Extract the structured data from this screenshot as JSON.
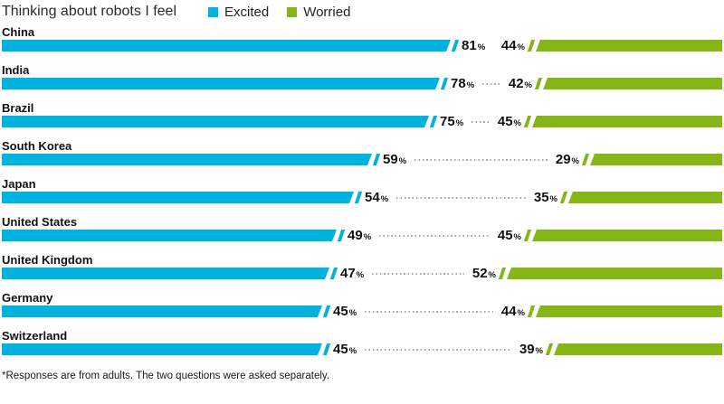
{
  "title": "Thinking about robots I feel",
  "legend": {
    "excited": {
      "label": "Excited",
      "color": "#00B3DC"
    },
    "worried": {
      "label": "Worried",
      "color": "#85B516"
    }
  },
  "footnote": "*Responses are from adults. The two questions were asked separately.",
  "chart_data": {
    "type": "bar",
    "orientation": "horizontal-diverging",
    "title": "Thinking about robots I feel",
    "unit": "%",
    "categories": [
      "China",
      "India",
      "Brazil",
      "South Korea",
      "Japan",
      "United States",
      "United Kingdom",
      "Germany",
      "Switzerland"
    ],
    "series": [
      {
        "name": "Excited",
        "color": "#00B3DC",
        "values": [
          81,
          78,
          75,
          59,
          54,
          49,
          47,
          45,
          45
        ]
      },
      {
        "name": "Worried",
        "color": "#85B516",
        "values": [
          44,
          42,
          45,
          29,
          35,
          45,
          52,
          44,
          39
        ]
      }
    ],
    "legend_position": "top",
    "grid": false,
    "value_labels": true,
    "leader_line_style": "dotted",
    "bar_end_style": "slanted-with-slash"
  }
}
